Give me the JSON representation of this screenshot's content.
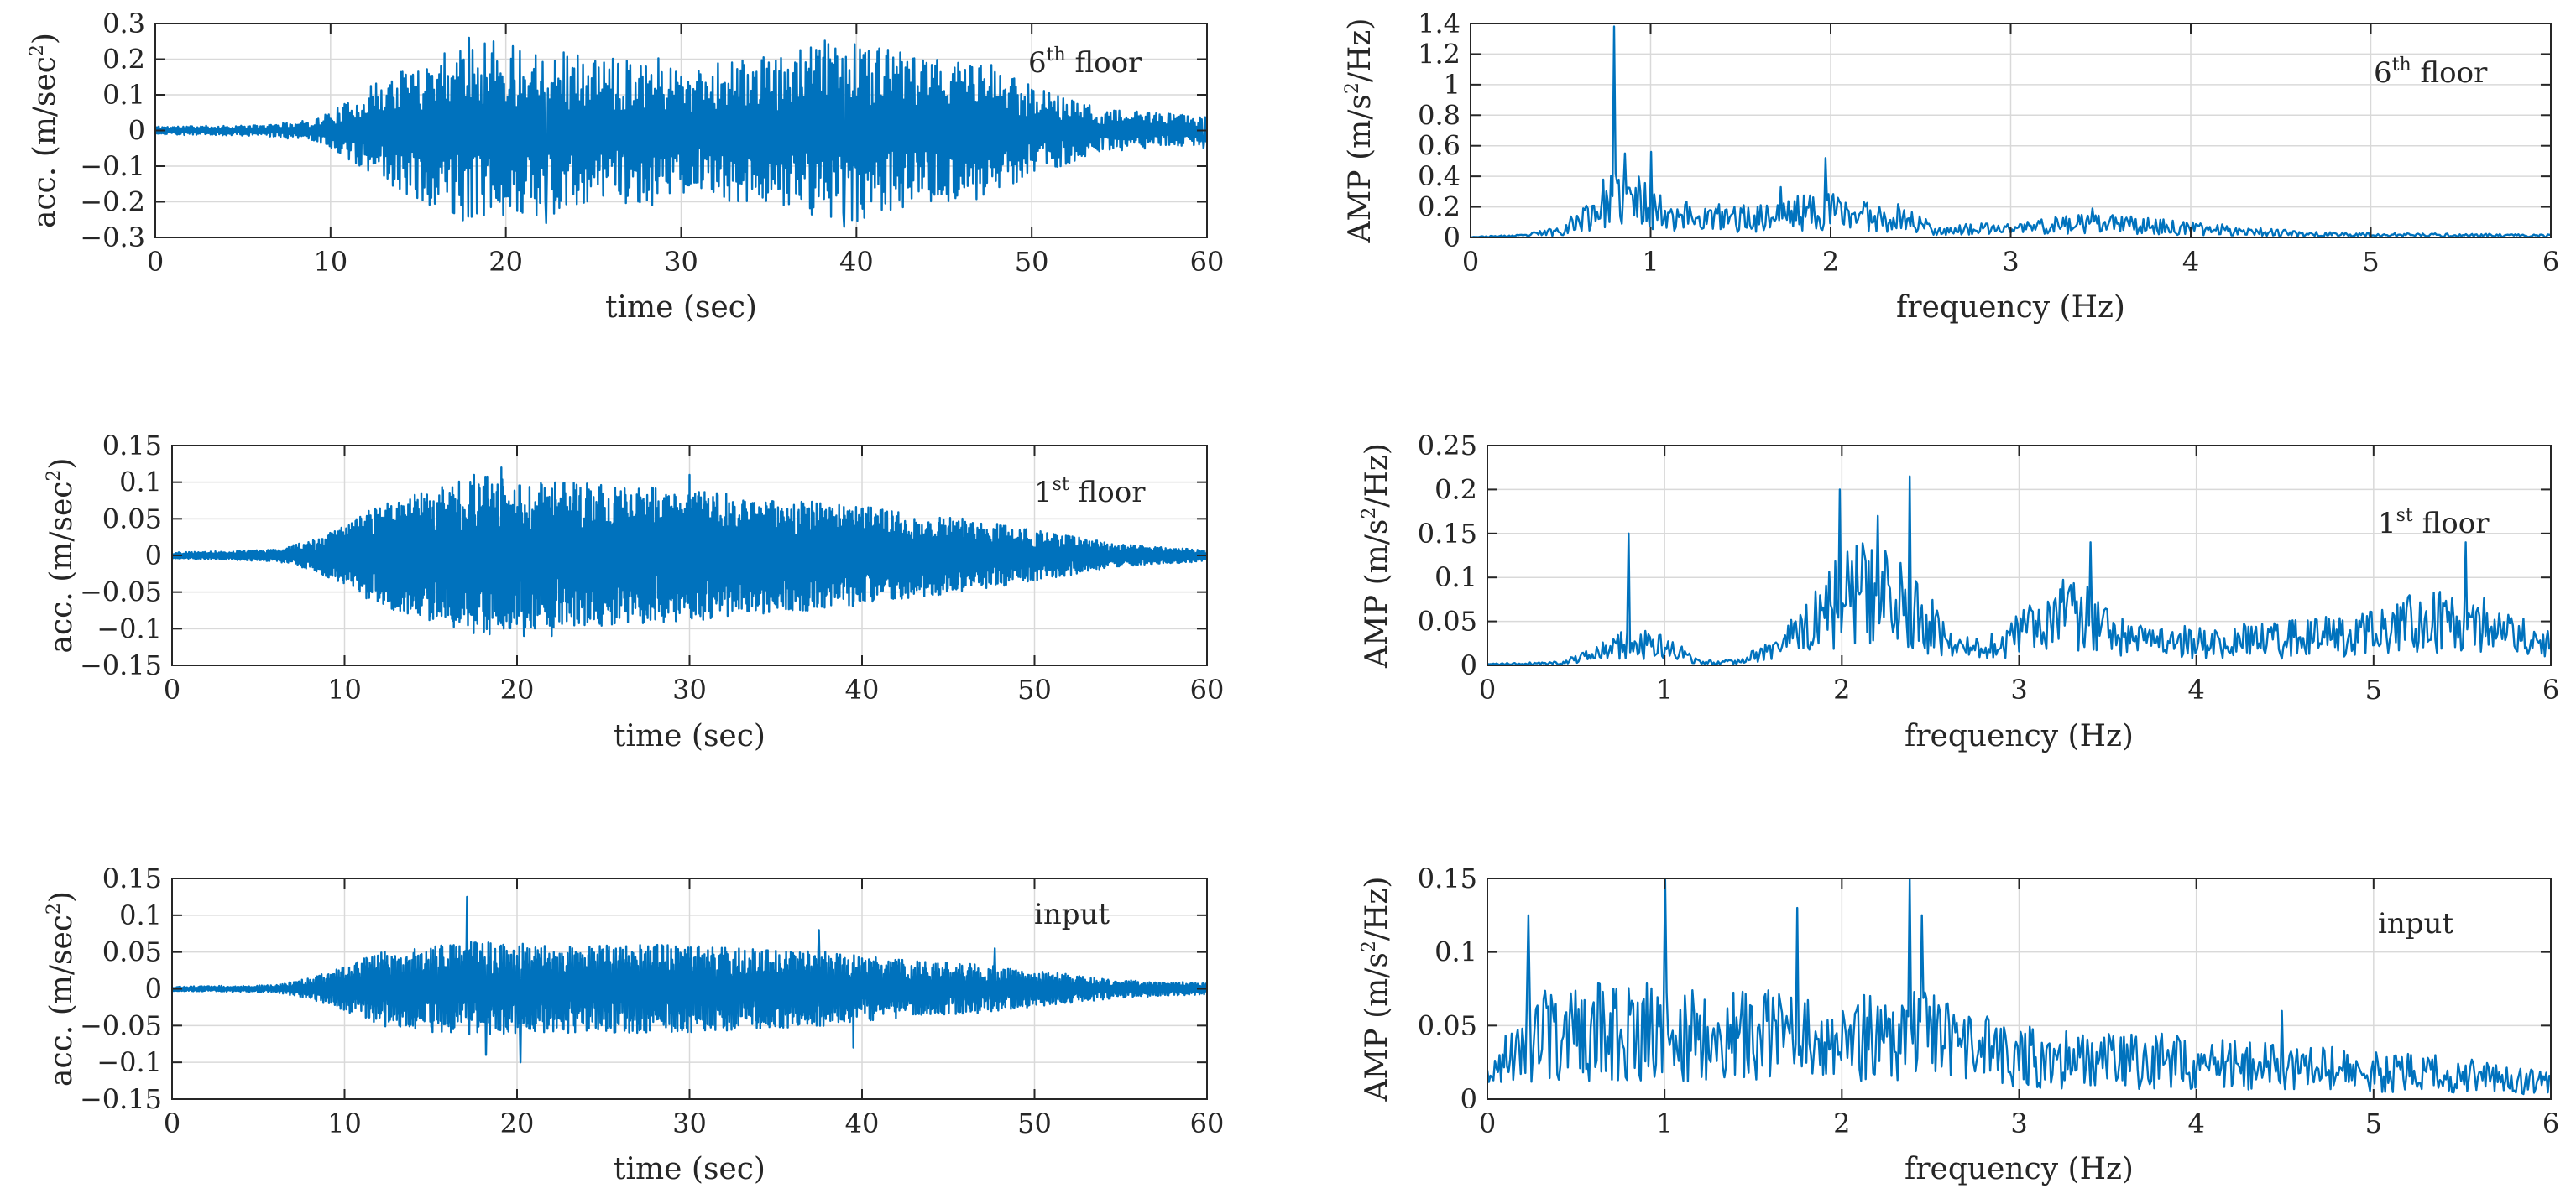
{
  "figure_colors": {
    "series": "#0072BD",
    "axes": "#262626",
    "grid": "#d9d9d9",
    "background": "#ffffff"
  },
  "chart_data": [
    {
      "id": "acc6",
      "type": "line",
      "domain": "time",
      "xlabel": "time (sec)",
      "ylabel": {
        "main": "acc. (m/sec",
        "sup": "2",
        "tail": ")"
      },
      "annotation": {
        "pre": "6",
        "sup": "th",
        "post": " floor"
      },
      "xlim": [
        0,
        60
      ],
      "ylim": [
        -0.3,
        0.3
      ],
      "xticks": [
        0,
        10,
        20,
        30,
        40,
        50,
        60
      ],
      "xtick_labels": [
        "0",
        "10",
        "20",
        "30",
        "40",
        "50",
        "60"
      ],
      "yticks": [
        -0.3,
        -0.2,
        -0.1,
        0,
        0.1,
        0.2,
        0.3
      ],
      "ytick_labels": [
        "−0.3",
        "−0.2",
        "−0.1",
        "0",
        "0.1",
        "0.2",
        "0.3"
      ],
      "grid": true,
      "legend": "none",
      "envelope": [
        [
          0,
          0.012
        ],
        [
          6,
          0.015
        ],
        [
          9,
          0.03
        ],
        [
          11,
          0.08
        ],
        [
          13,
          0.15
        ],
        [
          16,
          0.22
        ],
        [
          18,
          0.27
        ],
        [
          20,
          0.24
        ],
        [
          22,
          0.25
        ],
        [
          25,
          0.2
        ],
        [
          28,
          0.22
        ],
        [
          30,
          0.18
        ],
        [
          33,
          0.2
        ],
        [
          36,
          0.21
        ],
        [
          39,
          0.27
        ],
        [
          41,
          0.24
        ],
        [
          44,
          0.2
        ],
        [
          47,
          0.2
        ],
        [
          50,
          0.13
        ],
        [
          54,
          0.06
        ],
        [
          60,
          0.04
        ]
      ],
      "peaks": [
        [
          17.9,
          0.26
        ],
        [
          19.3,
          0.25
        ],
        [
          22.3,
          -0.26
        ],
        [
          39.3,
          -0.27
        ],
        [
          38.8,
          0.23
        ],
        [
          41.3,
          0.23
        ],
        [
          59.8,
          -0.05
        ]
      ],
      "samples": 1200,
      "seed": 11
    },
    {
      "id": "amp6",
      "type": "line",
      "domain": "frequency",
      "xlabel": "frequency (Hz)",
      "ylabel": {
        "main": "AMP (m/s",
        "sup": "2",
        "tail": "/Hz)"
      },
      "annotation": {
        "pre": "6",
        "sup": "th",
        "post": " floor"
      },
      "xlim": [
        0,
        6
      ],
      "ylim": [
        0,
        1.4
      ],
      "xticks": [
        0,
        1,
        2,
        3,
        4,
        5,
        6
      ],
      "xtick_labels": [
        "0",
        "1",
        "2",
        "3",
        "4",
        "5",
        "6"
      ],
      "yticks": [
        0,
        0.2,
        0.4,
        0.6,
        0.8,
        1,
        1.2,
        1.4
      ],
      "ytick_labels": [
        "0",
        "0.2",
        "0.4",
        "0.6",
        "0.8",
        "1",
        "1.2",
        "1.4"
      ],
      "grid": true,
      "legend": "none",
      "envelope": [
        [
          0,
          0.005
        ],
        [
          0.3,
          0.02
        ],
        [
          0.5,
          0.08
        ],
        [
          0.65,
          0.25
        ],
        [
          0.75,
          0.4
        ],
        [
          0.85,
          0.45
        ],
        [
          0.95,
          0.4
        ],
        [
          1.05,
          0.3
        ],
        [
          1.3,
          0.22
        ],
        [
          1.6,
          0.22
        ],
        [
          1.8,
          0.28
        ],
        [
          2.0,
          0.3
        ],
        [
          2.2,
          0.25
        ],
        [
          2.4,
          0.22
        ],
        [
          2.6,
          0.08
        ],
        [
          3.0,
          0.1
        ],
        [
          3.3,
          0.15
        ],
        [
          3.6,
          0.15
        ],
        [
          4.0,
          0.1
        ],
        [
          4.3,
          0.08
        ],
        [
          4.6,
          0.04
        ],
        [
          5.0,
          0.03
        ],
        [
          6.0,
          0.02
        ]
      ],
      "peaks": [
        [
          0.8,
          1.38
        ],
        [
          0.86,
          0.55
        ],
        [
          1.0,
          0.56
        ],
        [
          1.97,
          0.52
        ],
        [
          1.72,
          0.33
        ],
        [
          3.45,
          0.19
        ]
      ],
      "samples": 700,
      "seed": 23
    },
    {
      "id": "acc1",
      "type": "line",
      "domain": "time",
      "xlabel": "time (sec)",
      "ylabel": {
        "main": "acc. (m/sec",
        "sup": "2",
        "tail": ")"
      },
      "annotation": {
        "pre": "1",
        "sup": "st",
        "post": " floor"
      },
      "xlim": [
        0,
        60
      ],
      "ylim": [
        -0.15,
        0.15
      ],
      "xticks": [
        0,
        10,
        20,
        30,
        40,
        50,
        60
      ],
      "xtick_labels": [
        "0",
        "10",
        "20",
        "30",
        "40",
        "50",
        "60"
      ],
      "yticks": [
        -0.15,
        -0.1,
        -0.05,
        0,
        0.05,
        0.1,
        0.15
      ],
      "ytick_labels": [
        "−0.15",
        "−0.1",
        "−0.05",
        "0",
        "0.05",
        "0.1",
        "0.15"
      ],
      "grid": true,
      "legend": "none",
      "envelope": [
        [
          0,
          0.004
        ],
        [
          6,
          0.008
        ],
        [
          8,
          0.02
        ],
        [
          10,
          0.04
        ],
        [
          12,
          0.07
        ],
        [
          15,
          0.09
        ],
        [
          18,
          0.11
        ],
        [
          20,
          0.1
        ],
        [
          23,
          0.1
        ],
        [
          26,
          0.095
        ],
        [
          30,
          0.09
        ],
        [
          34,
          0.08
        ],
        [
          38,
          0.075
        ],
        [
          42,
          0.06
        ],
        [
          46,
          0.05
        ],
        [
          50,
          0.035
        ],
        [
          55,
          0.015
        ],
        [
          60,
          0.008
        ]
      ],
      "peaks": [
        [
          19.1,
          0.12
        ],
        [
          20.4,
          -0.11
        ],
        [
          22,
          -0.11
        ],
        [
          17.5,
          0.11
        ],
        [
          30,
          0.11
        ]
      ],
      "samples": 2200,
      "seed": 37
    },
    {
      "id": "amp1",
      "type": "line",
      "domain": "frequency",
      "xlabel": "frequency (Hz)",
      "ylabel": {
        "main": "AMP (m/s",
        "sup": "2",
        "tail": "/Hz)"
      },
      "annotation": {
        "pre": "1",
        "sup": "st",
        "post": " floor"
      },
      "xlim": [
        0,
        6
      ],
      "ylim": [
        0,
        0.25
      ],
      "xticks": [
        0,
        1,
        2,
        3,
        4,
        5,
        6
      ],
      "xtick_labels": [
        "0",
        "1",
        "2",
        "3",
        "4",
        "5",
        "6"
      ],
      "yticks": [
        0,
        0.05,
        0.1,
        0.15,
        0.2,
        0.25
      ],
      "ytick_labels": [
        "0",
        "0.05",
        "0.1",
        "0.15",
        "0.2",
        "0.25"
      ],
      "grid": true,
      "legend": "none",
      "envelope": [
        [
          0,
          0.002
        ],
        [
          0.4,
          0.005
        ],
        [
          0.6,
          0.02
        ],
        [
          0.75,
          0.04
        ],
        [
          0.9,
          0.04
        ],
        [
          1.05,
          0.03
        ],
        [
          1.2,
          0.005
        ],
        [
          1.4,
          0.008
        ],
        [
          1.6,
          0.03
        ],
        [
          1.8,
          0.07
        ],
        [
          2.0,
          0.14
        ],
        [
          2.2,
          0.14
        ],
        [
          2.4,
          0.12
        ],
        [
          2.6,
          0.04
        ],
        [
          2.8,
          0.03
        ],
        [
          3.0,
          0.06
        ],
        [
          3.2,
          0.1
        ],
        [
          3.4,
          0.09
        ],
        [
          3.6,
          0.05
        ],
        [
          4.0,
          0.045
        ],
        [
          4.5,
          0.05
        ],
        [
          5.0,
          0.07
        ],
        [
          5.3,
          0.085
        ],
        [
          5.6,
          0.08
        ],
        [
          6.0,
          0.04
        ]
      ],
      "peaks": [
        [
          0.8,
          0.15
        ],
        [
          1.99,
          0.2
        ],
        [
          2.38,
          0.215
        ],
        [
          2.2,
          0.17
        ],
        [
          3.4,
          0.14
        ],
        [
          5.52,
          0.14
        ]
      ],
      "samples": 700,
      "seed": 41
    },
    {
      "id": "accin",
      "type": "line",
      "domain": "time",
      "xlabel": "time (sec)",
      "ylabel": {
        "main": "acc. (m/sec",
        "sup": "2",
        "tail": ")"
      },
      "annotation": {
        "pre": "input",
        "sup": "",
        "post": ""
      },
      "xlim": [
        0,
        60
      ],
      "ylim": [
        -0.15,
        0.15
      ],
      "xticks": [
        0,
        10,
        20,
        30,
        40,
        50,
        60
      ],
      "xtick_labels": [
        "0",
        "10",
        "20",
        "30",
        "40",
        "50",
        "60"
      ],
      "yticks": [
        -0.15,
        -0.1,
        -0.05,
        0,
        0.05,
        0.1,
        0.15
      ],
      "ytick_labels": [
        "−0.15",
        "−0.1",
        "−0.05",
        "0",
        "0.05",
        "0.1",
        "0.15"
      ],
      "grid": true,
      "legend": "none",
      "envelope": [
        [
          0,
          0.003
        ],
        [
          6,
          0.005
        ],
        [
          8,
          0.015
        ],
        [
          10,
          0.03
        ],
        [
          12,
          0.05
        ],
        [
          15,
          0.06
        ],
        [
          18,
          0.065
        ],
        [
          22,
          0.06
        ],
        [
          26,
          0.06
        ],
        [
          30,
          0.06
        ],
        [
          34,
          0.055
        ],
        [
          38,
          0.05
        ],
        [
          42,
          0.04
        ],
        [
          46,
          0.035
        ],
        [
          50,
          0.025
        ],
        [
          55,
          0.012
        ],
        [
          60,
          0.008
        ]
      ],
      "peaks": [
        [
          17.1,
          0.125
        ],
        [
          20.2,
          -0.1
        ],
        [
          18.2,
          -0.09
        ],
        [
          37.5,
          0.08
        ],
        [
          39.5,
          -0.08
        ],
        [
          47.7,
          0.055
        ]
      ],
      "samples": 1800,
      "seed": 53
    },
    {
      "id": "ampin",
      "type": "line",
      "domain": "frequency",
      "xlabel": "frequency (Hz)",
      "ylabel": {
        "main": "AMP (m/s",
        "sup": "2",
        "tail": "/Hz)"
      },
      "annotation": {
        "pre": "input",
        "sup": "",
        "post": ""
      },
      "xlim": [
        0,
        6
      ],
      "ylim": [
        0,
        0.15
      ],
      "xticks": [
        0,
        1,
        2,
        3,
        4,
        5,
        6
      ],
      "xtick_labels": [
        "0",
        "1",
        "2",
        "3",
        "4",
        "5",
        "6"
      ],
      "yticks": [
        0,
        0.05,
        0.1,
        0.15
      ],
      "ytick_labels": [
        "0",
        "0.05",
        "0.1",
        "0.15"
      ],
      "grid": true,
      "legend": "none",
      "envelope": [
        [
          0,
          0.02
        ],
        [
          0.2,
          0.08
        ],
        [
          0.4,
          0.07
        ],
        [
          0.6,
          0.08
        ],
        [
          0.8,
          0.08
        ],
        [
          1.0,
          0.08
        ],
        [
          1.2,
          0.075
        ],
        [
          1.5,
          0.075
        ],
        [
          1.8,
          0.075
        ],
        [
          2.0,
          0.075
        ],
        [
          2.2,
          0.07
        ],
        [
          2.4,
          0.08
        ],
        [
          2.6,
          0.065
        ],
        [
          3.0,
          0.05
        ],
        [
          3.4,
          0.045
        ],
        [
          3.8,
          0.045
        ],
        [
          4.2,
          0.04
        ],
        [
          4.6,
          0.04
        ],
        [
          5.0,
          0.032
        ],
        [
          5.4,
          0.03
        ],
        [
          5.7,
          0.025
        ],
        [
          6.0,
          0.018
        ]
      ],
      "peaks": [
        [
          0.23,
          0.125
        ],
        [
          1.0,
          0.15
        ],
        [
          1.75,
          0.13
        ],
        [
          2.38,
          0.15
        ],
        [
          2.45,
          0.125
        ],
        [
          4.48,
          0.06
        ]
      ],
      "samples": 700,
      "seed": 67
    }
  ]
}
